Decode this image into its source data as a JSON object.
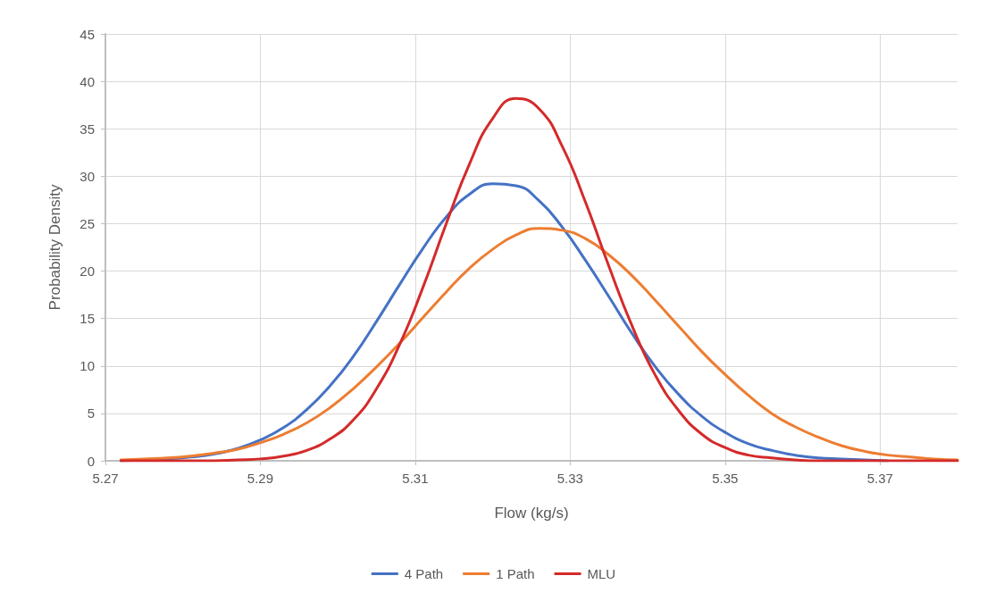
{
  "chart_data": {
    "type": "line",
    "xlabel": "Flow (kg/s)",
    "ylabel": "Probability Density",
    "x": [
      5.272,
      5.275,
      5.278,
      5.281,
      5.284,
      5.287,
      5.29,
      5.293,
      5.296,
      5.299,
      5.302,
      5.305,
      5.308,
      5.311,
      5.314,
      5.317,
      5.32,
      5.323,
      5.326,
      5.329,
      5.332,
      5.335,
      5.338,
      5.341,
      5.344,
      5.347,
      5.35,
      5.353,
      5.356,
      5.359,
      5.362,
      5.365,
      5.368,
      5.371,
      5.374,
      5.377,
      5.38
    ],
    "series": [
      {
        "name": "4 Path",
        "color": "#4472c4",
        "values": [
          0,
          0.1,
          0.2,
          0.4,
          0.7,
          1.3,
          2.2,
          3.5,
          5.4,
          7.9,
          11,
          14.7,
          18.6,
          22.4,
          25.7,
          28.1,
          29.2,
          29,
          27.4,
          24.6,
          21.1,
          17.3,
          13.4,
          9.9,
          7,
          4.7,
          3,
          1.8,
          1.1,
          0.6,
          0.3,
          0.2,
          0.1,
          0,
          null,
          null,
          null
        ]
      },
      {
        "name": "1 Path",
        "color": "#ed7d31",
        "values": [
          0.1,
          0.2,
          0.3,
          0.5,
          0.8,
          1.2,
          1.9,
          2.8,
          4,
          5.6,
          7.6,
          9.9,
          12.4,
          15.1,
          17.8,
          20.3,
          22.3,
          23.8,
          24.5,
          24.3,
          23.4,
          21.7,
          19.5,
          16.9,
          14.2,
          11.5,
          9.1,
          6.9,
          5,
          3.6,
          2.5,
          1.6,
          1,
          0.6,
          0.4,
          0.2,
          0.1
        ]
      },
      {
        "name": "MLU",
        "color": "#d42a2a",
        "values": [
          0,
          0,
          0,
          0,
          0,
          0.1,
          0.2,
          0.5,
          1.1,
          2.3,
          4.3,
          7.6,
          12.3,
          18.3,
          25,
          31.3,
          36.1,
          38.2,
          37.1,
          33.1,
          27.2,
          20.5,
          14.2,
          9,
          5.3,
          2.8,
          1.4,
          0.6,
          0.3,
          0.1,
          0,
          0,
          0,
          0,
          0,
          0,
          0
        ]
      }
    ],
    "xlim": [
      5.27,
      5.38
    ],
    "xticks": [
      5.27,
      5.29,
      5.31,
      5.33,
      5.35,
      5.37
    ],
    "ylim": [
      0,
      45
    ],
    "yticks": [
      0,
      5,
      10,
      15,
      20,
      25,
      30,
      35,
      40,
      45
    ],
    "grid": true,
    "legend": "bottom",
    "marker": "none",
    "line_style": "solid"
  }
}
